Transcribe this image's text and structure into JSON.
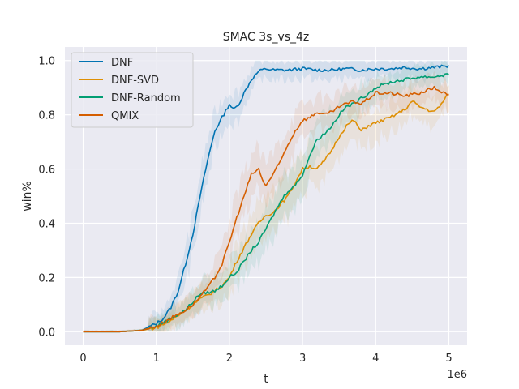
{
  "chart_data": {
    "type": "line",
    "title": "SMAC 3s_vs_4z",
    "xlabel": "t",
    "ylabel": "win%",
    "x_offset_label": "1e6",
    "xlim": [
      -0.25,
      5.25
    ],
    "ylim": [
      -0.05,
      1.05
    ],
    "xticks": [
      0,
      1,
      2,
      3,
      4,
      5
    ],
    "xtick_labels": [
      "0",
      "1",
      "2",
      "3",
      "4",
      "5"
    ],
    "yticks": [
      0.0,
      0.2,
      0.4,
      0.6,
      0.8,
      1.0
    ],
    "ytick_labels": [
      "0.0",
      "0.2",
      "0.4",
      "0.6",
      "0.8",
      "1.0"
    ],
    "grid": true,
    "legend_position": "top-left",
    "series": [
      {
        "name": "DNF",
        "color": "#0173b2",
        "x": [
          0,
          0.5,
          0.8,
          1.0,
          1.1,
          1.2,
          1.3,
          1.4,
          1.5,
          1.6,
          1.7,
          1.8,
          1.9,
          2.0,
          2.05,
          2.1,
          2.15,
          2.2,
          2.3,
          2.4,
          2.5,
          2.6,
          2.8,
          3.0,
          3.2,
          3.4,
          3.6,
          3.8,
          4.0,
          4.2,
          4.4,
          4.6,
          4.8,
          5.0
        ],
        "y": [
          0.0,
          0.0,
          0.005,
          0.03,
          0.05,
          0.09,
          0.15,
          0.25,
          0.36,
          0.5,
          0.63,
          0.74,
          0.79,
          0.84,
          0.82,
          0.83,
          0.85,
          0.88,
          0.93,
          0.96,
          0.97,
          0.965,
          0.965,
          0.97,
          0.965,
          0.965,
          0.97,
          0.965,
          0.97,
          0.97,
          0.975,
          0.97,
          0.975,
          0.98
        ]
      },
      {
        "name": "DNF-SVD",
        "color": "#de8f05",
        "x": [
          0,
          0.5,
          0.8,
          1.0,
          1.2,
          1.4,
          1.6,
          1.8,
          1.9,
          2.0,
          2.1,
          2.2,
          2.3,
          2.4,
          2.5,
          2.6,
          2.7,
          2.8,
          2.9,
          3.0,
          3.1,
          3.2,
          3.3,
          3.4,
          3.5,
          3.6,
          3.7,
          3.8,
          3.9,
          4.0,
          4.2,
          4.4,
          4.5,
          4.6,
          4.8,
          4.9,
          5.0
        ],
        "y": [
          0.0,
          0.0,
          0.005,
          0.015,
          0.04,
          0.08,
          0.12,
          0.15,
          0.17,
          0.2,
          0.26,
          0.31,
          0.36,
          0.4,
          0.43,
          0.44,
          0.47,
          0.5,
          0.55,
          0.6,
          0.61,
          0.6,
          0.63,
          0.67,
          0.72,
          0.76,
          0.78,
          0.74,
          0.76,
          0.77,
          0.79,
          0.82,
          0.85,
          0.83,
          0.81,
          0.84,
          0.88
        ]
      },
      {
        "name": "DNF-Random",
        "color": "#029e73",
        "x": [
          0,
          0.5,
          0.8,
          1.0,
          1.2,
          1.4,
          1.6,
          1.8,
          1.9,
          2.0,
          2.1,
          2.2,
          2.3,
          2.4,
          2.5,
          2.6,
          2.7,
          2.8,
          2.9,
          3.0,
          3.1,
          3.2,
          3.3,
          3.4,
          3.5,
          3.6,
          3.7,
          3.8,
          3.9,
          4.0,
          4.2,
          4.4,
          4.6,
          4.8,
          5.0
        ],
        "y": [
          0.0,
          0.0,
          0.005,
          0.02,
          0.05,
          0.08,
          0.14,
          0.15,
          0.17,
          0.2,
          0.22,
          0.26,
          0.3,
          0.33,
          0.38,
          0.43,
          0.48,
          0.52,
          0.54,
          0.58,
          0.65,
          0.71,
          0.73,
          0.76,
          0.8,
          0.83,
          0.84,
          0.86,
          0.88,
          0.9,
          0.92,
          0.93,
          0.94,
          0.94,
          0.95
        ]
      },
      {
        "name": "QMIX",
        "color": "#d55e00",
        "x": [
          0,
          0.5,
          0.8,
          1.0,
          1.2,
          1.4,
          1.5,
          1.6,
          1.7,
          1.8,
          1.9,
          2.0,
          2.1,
          2.2,
          2.3,
          2.4,
          2.45,
          2.5,
          2.55,
          2.6,
          2.7,
          2.8,
          2.9,
          3.0,
          3.1,
          3.2,
          3.3,
          3.4,
          3.5,
          3.6,
          3.7,
          3.8,
          3.9,
          4.0,
          4.2,
          4.4,
          4.6,
          4.8,
          5.0
        ],
        "y": [
          0.0,
          0.0,
          0.005,
          0.02,
          0.05,
          0.08,
          0.1,
          0.13,
          0.16,
          0.2,
          0.25,
          0.33,
          0.42,
          0.5,
          0.58,
          0.6,
          0.56,
          0.54,
          0.56,
          0.58,
          0.63,
          0.69,
          0.74,
          0.78,
          0.79,
          0.81,
          0.8,
          0.81,
          0.83,
          0.84,
          0.85,
          0.84,
          0.86,
          0.88,
          0.88,
          0.87,
          0.88,
          0.9,
          0.87
        ]
      }
    ]
  }
}
